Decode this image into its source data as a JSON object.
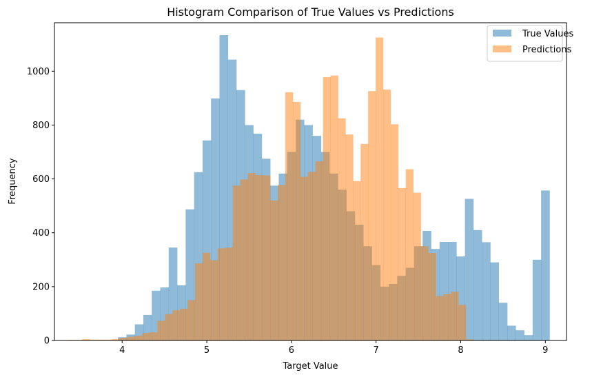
{
  "chart_data": {
    "type": "bar",
    "title": "Histogram Comparison of True Values vs Predictions",
    "xlabel": "Target Value",
    "ylabel": "Frequency",
    "xlim": [
      3.2,
      9.25
    ],
    "ylim": [
      0,
      1180
    ],
    "x_ticks": [
      4,
      5,
      6,
      7,
      8,
      9
    ],
    "y_ticks": [
      0,
      200,
      400,
      600,
      800,
      1000
    ],
    "legend_position": "top-right",
    "grid": false,
    "series": [
      {
        "name": "True Values",
        "color": "#1f77b4",
        "alpha": 0.5,
        "bin_start": 3.95,
        "bin_width": 0.1,
        "values": [
          12,
          22,
          60,
          95,
          185,
          197,
          345,
          205,
          487,
          625,
          743,
          899,
          1134,
          1043,
          930,
          800,
          768,
          675,
          575,
          620,
          700,
          820,
          800,
          760,
          700,
          620,
          560,
          480,
          430,
          350,
          280,
          200,
          210,
          240,
          270,
          350,
          407,
          340,
          366,
          366,
          312,
          526,
          410,
          365,
          290,
          140,
          55,
          38,
          20,
          300,
          557
        ]
      },
      {
        "name": "Predictions",
        "color": "#ff7f0e",
        "alpha": 0.5,
        "bin_start": 3.35,
        "bin_width": 0.0889,
        "values": [
          2,
          2,
          5,
          3,
          3,
          3,
          5,
          10,
          14,
          18,
          28,
          30,
          73,
          98,
          112,
          118,
          150,
          287,
          326,
          298,
          342,
          345,
          575,
          598,
          622,
          614,
          613,
          520,
          578,
          922,
          886,
          608,
          626,
          665,
          978,
          984,
          825,
          765,
          592,
          730,
          926,
          1125,
          932,
          803,
          566,
          636,
          549,
          350,
          325,
          165,
          172,
          181,
          132,
          4
        ]
      }
    ]
  }
}
